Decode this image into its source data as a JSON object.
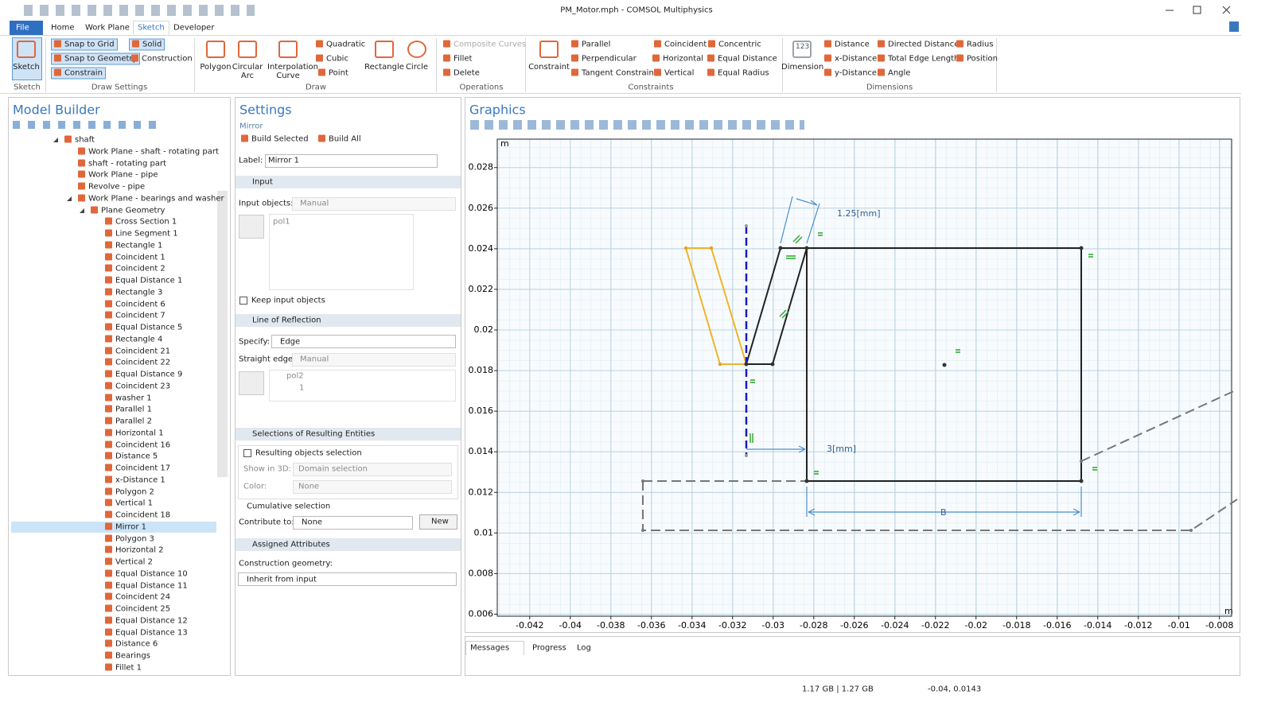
{
  "window": {
    "title": "PM_Motor.mph - COMSOL Multiphysics"
  },
  "ribbon": {
    "tabs": [
      {
        "label": "File"
      },
      {
        "label": "Home"
      },
      {
        "label": "Work Plane"
      },
      {
        "label": "Sketch",
        "active": true
      },
      {
        "label": "Developer"
      }
    ],
    "groups": [
      {
        "label": "Sketch",
        "buttons": [
          "Sketch"
        ]
      },
      {
        "label": "Draw Settings",
        "buttons": [
          "Snap to Grid",
          "Solid",
          "Snap to Geometry",
          "Construction",
          "Constrain"
        ]
      },
      {
        "label": "Draw",
        "buttons": [
          "Polygon",
          "Circular Arc",
          "Interpolation Curve",
          "Quadratic",
          "Cubic",
          "Point",
          "Rectangle",
          "Circle"
        ]
      },
      {
        "label": "Operations",
        "buttons": [
          "Composite Curves",
          "Fillet",
          "Delete"
        ]
      },
      {
        "label": "Constraints",
        "buttons": [
          "Constraint",
          "Parallel",
          "Perpendicular",
          "Tangent Constraint",
          "Coincident",
          "Horizontal",
          "Vertical",
          "Concentric",
          "Equal Distance",
          "Equal Radius"
        ]
      },
      {
        "label": "Dimensions",
        "icon_text": "123",
        "buttons": [
          "Dimension",
          "Distance",
          "x-Distance",
          "y-Distance",
          "Directed Distance",
          "Total Edge Length",
          "Angle",
          "Radius",
          "Position"
        ]
      }
    ]
  },
  "model_builder": {
    "title": "Model Builder",
    "tree": {
      "label": "shaft",
      "children": [
        {
          "label": "Work Plane - shaft - rotating part"
        },
        {
          "label": "shaft - rotating part"
        },
        {
          "label": "Work Plane - pipe"
        },
        {
          "label": "Revolve - pipe"
        },
        {
          "label": "Work Plane - bearings and washer",
          "children": [
            {
              "label": "Plane Geometry",
              "children": [
                {
                  "label": "Cross Section 1"
                },
                {
                  "label": "Line Segment 1"
                },
                {
                  "label": "Rectangle 1"
                },
                {
                  "label": "Coincident 1"
                },
                {
                  "label": "Coincident 2"
                },
                {
                  "label": "Equal Distance 1"
                },
                {
                  "label": "Rectangle 3"
                },
                {
                  "label": "Coincident 6"
                },
                {
                  "label": "Coincident 7"
                },
                {
                  "label": "Equal Distance 5"
                },
                {
                  "label": "Rectangle 4"
                },
                {
                  "label": "Coincident 21"
                },
                {
                  "label": "Coincident 22"
                },
                {
                  "label": "Equal Distance 9"
                },
                {
                  "label": "Coincident 23"
                },
                {
                  "label": "washer 1"
                },
                {
                  "label": "Parallel 1"
                },
                {
                  "label": "Parallel 2"
                },
                {
                  "label": "Horizontal 1"
                },
                {
                  "label": "Coincident 16"
                },
                {
                  "label": "Distance 5"
                },
                {
                  "label": "Coincident 17"
                },
                {
                  "label": "x-Distance 1"
                },
                {
                  "label": "Polygon 2"
                },
                {
                  "label": "Vertical 1"
                },
                {
                  "label": "Coincident 18"
                },
                {
                  "label": "Mirror 1",
                  "selected": true
                },
                {
                  "label": "Polygon 3"
                },
                {
                  "label": "Horizontal 2"
                },
                {
                  "label": "Vertical 2"
                },
                {
                  "label": "Equal Distance 10"
                },
                {
                  "label": "Equal Distance 11"
                },
                {
                  "label": "Coincident 24"
                },
                {
                  "label": "Coincident 25"
                },
                {
                  "label": "Equal Distance 12"
                },
                {
                  "label": "Equal Distance 13"
                },
                {
                  "label": "Distance 6"
                },
                {
                  "label": "Bearings"
                },
                {
                  "label": "Fillet 1"
                }
              ]
            }
          ]
        }
      ]
    }
  },
  "settings": {
    "title": "Settings",
    "subtitle": "Mirror",
    "build_selected": "Build Selected",
    "build_all": "Build All",
    "label_caption": "Label:",
    "label_value": "Mirror 1",
    "input": {
      "heading": "Input",
      "objects_caption": "Input objects:",
      "objects_mode": "Manual",
      "selection": [
        "pol1"
      ],
      "keep": "Keep input objects"
    },
    "reflection": {
      "heading": "Line of Reflection",
      "specify_caption": "Specify:",
      "specify_value": "Edge",
      "edge_caption": "Straight edge:",
      "edge_mode": "Manual",
      "selection": [
        "pol2",
        "1"
      ]
    },
    "selections": {
      "heading": "Selections of Resulting Entities",
      "resulting": "Resulting objects selection",
      "show_caption": "Show in 3D:",
      "show_value": "Domain selection",
      "color_caption": "Color:",
      "color_value": "None",
      "cumulative": "Cumulative selection",
      "contribute_caption": "Contribute to:",
      "contribute_value": "None",
      "new": "New"
    },
    "attributes": {
      "heading": "Assigned Attributes",
      "construction_caption": "Construction geometry:",
      "construction_value": "Inherit from input"
    }
  },
  "graphics": {
    "title": "Graphics",
    "unit": "m",
    "xlim": [
      -0.0436,
      -0.0074
    ],
    "xticks": [
      -0.042,
      -0.04,
      -0.038,
      -0.036,
      -0.034,
      -0.032,
      -0.03,
      -0.028,
      -0.026,
      -0.024,
      -0.022,
      -0.02,
      -0.018,
      -0.016,
      -0.014,
      -0.012,
      -0.01,
      -0.008
    ],
    "ylim": [
      0.0059,
      0.0294
    ],
    "yticks": [
      0.006,
      0.008,
      0.01,
      0.012,
      0.014,
      0.016,
      0.018,
      0.02,
      0.022,
      0.024,
      0.026,
      0.028
    ],
    "grid": true,
    "annotations": [
      "1.25[mm]",
      "3[mm]",
      "B"
    ]
  },
  "messages": {
    "tabs": [
      "Messages",
      "Progress",
      "Log"
    ]
  },
  "status": {
    "memory": "1.17 GB | 1.27 GB",
    "coordinates": "-0.04, 0.0143"
  }
}
